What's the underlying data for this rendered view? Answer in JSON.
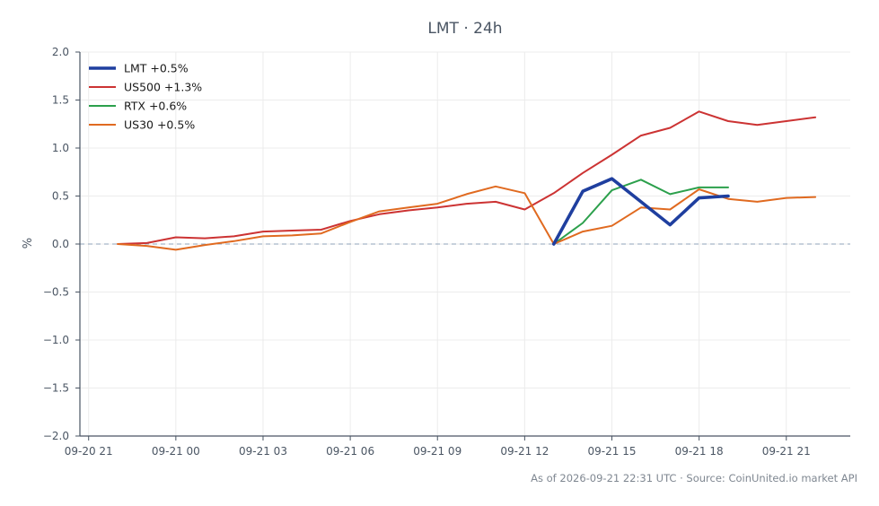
{
  "chart_data": {
    "type": "line",
    "title": "LMT · 24h",
    "xlabel": "",
    "ylabel": "%",
    "ylim": [
      -2.0,
      2.0
    ],
    "yticks": [
      "2.0",
      "1.5",
      "1.0",
      "0.5",
      "0.0",
      "−0.5",
      "−1.0",
      "−1.5",
      "−2.0"
    ],
    "ytick_values": [
      2.0,
      1.5,
      1.0,
      0.5,
      0.0,
      -0.5,
      -1.0,
      -1.5,
      -2.0
    ],
    "xlim_hours": [
      -3.3,
      23.2
    ],
    "xticks": [
      {
        "label": "09-20 21",
        "hour": -3
      },
      {
        "label": "09-21 00",
        "hour": 0
      },
      {
        "label": "09-21 03",
        "hour": 3
      },
      {
        "label": "09-21 06",
        "hour": 6
      },
      {
        "label": "09-21 09",
        "hour": 9
      },
      {
        "label": "09-21 12",
        "hour": 12
      },
      {
        "label": "09-21 15",
        "hour": 15
      },
      {
        "label": "09-21 18",
        "hour": 18
      },
      {
        "label": "09-21 21",
        "hour": 21
      }
    ],
    "zero_line": true,
    "grid": true,
    "legend_position": "top-left",
    "series": [
      {
        "name": "LMT +0.5%",
        "color": "#1f3f9f",
        "width": 3.6,
        "x": [
          13,
          14,
          15,
          16,
          17,
          18,
          19
        ],
        "y": [
          0.0,
          0.55,
          0.68,
          0.44,
          0.2,
          0.48,
          0.5
        ]
      },
      {
        "name": "US500 +1.3%",
        "color": "#cc3333",
        "width": 2,
        "x": [
          -2,
          -1,
          0,
          1,
          2,
          3,
          4,
          5,
          6,
          7,
          8,
          9,
          10,
          11,
          12,
          13,
          14,
          15,
          16,
          17,
          18,
          19,
          20,
          21,
          22
        ],
        "y": [
          0.0,
          0.01,
          0.07,
          0.06,
          0.08,
          0.13,
          0.14,
          0.15,
          0.24,
          0.31,
          0.35,
          0.38,
          0.42,
          0.44,
          0.36,
          0.53,
          0.74,
          0.93,
          1.13,
          1.21,
          1.38,
          1.28,
          1.24,
          1.28,
          1.32
        ]
      },
      {
        "name": "RTX +0.6%",
        "color": "#2ca04c",
        "width": 2,
        "x": [
          13,
          14,
          15,
          16,
          17,
          18,
          19
        ],
        "y": [
          0.0,
          0.22,
          0.56,
          0.67,
          0.52,
          0.59,
          0.59
        ]
      },
      {
        "name": "US30 +0.5%",
        "color": "#e06a20",
        "width": 2,
        "x": [
          -2,
          -1,
          0,
          1,
          2,
          3,
          4,
          5,
          6,
          7,
          8,
          9,
          10,
          11,
          12,
          13,
          14,
          15,
          16,
          17,
          18,
          19,
          20,
          21,
          22
        ],
        "y": [
          0.0,
          -0.02,
          -0.06,
          -0.01,
          0.03,
          0.08,
          0.09,
          0.11,
          0.23,
          0.34,
          0.38,
          0.42,
          0.52,
          0.6,
          0.53,
          0.0,
          0.13,
          0.19,
          0.38,
          0.36,
          0.57,
          0.47,
          0.44,
          0.48,
          0.49
        ]
      }
    ]
  },
  "footer": "As of 2026-09-21 22:31 UTC · Source: CoinUnited.io market API"
}
